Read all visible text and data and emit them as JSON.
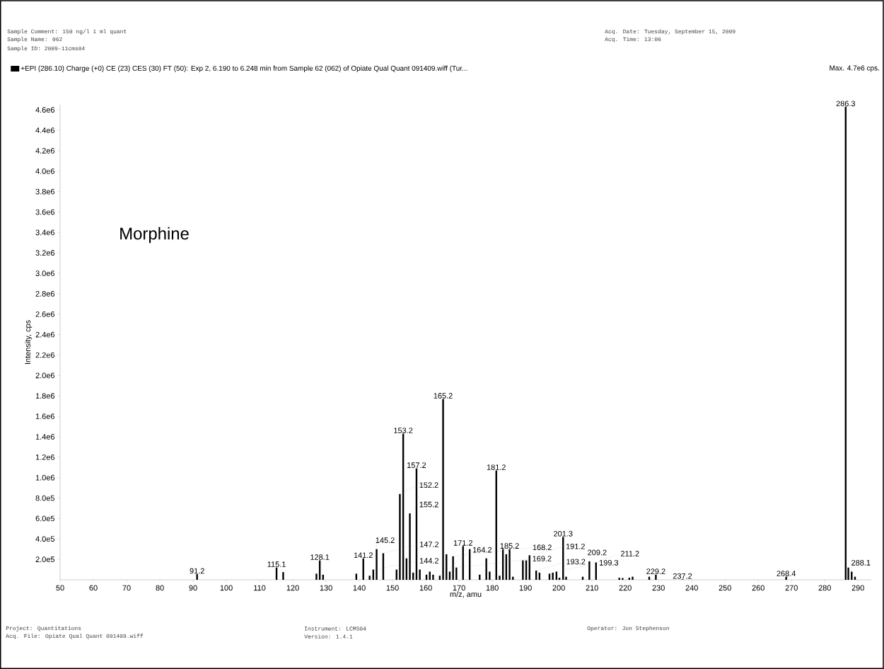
{
  "chart_data": {
    "type": "bar",
    "xlabel": "m/z, amu",
    "ylabel": "Intensity, cps",
    "x": [
      91.2,
      115.1,
      117.1,
      127.1,
      128.1,
      129.1,
      139.1,
      141.2,
      143.1,
      144.2,
      145.2,
      147.2,
      151.2,
      152.2,
      153.2,
      154.2,
      155.2,
      156.2,
      157.2,
      158.2,
      160.2,
      161.2,
      162.2,
      164.2,
      165.2,
      166.2,
      167.2,
      168.2,
      169.2,
      171.2,
      173.2,
      176.2,
      178.2,
      179.2,
      181.2,
      182.2,
      183.2,
      184.2,
      185.2,
      186.2,
      189.2,
      190.2,
      191.2,
      193.2,
      194.2,
      197.2,
      198.2,
      199.3,
      200.2,
      201.3,
      202.2,
      207.2,
      209.2,
      211.2,
      218.2,
      219.2,
      221.2,
      222.2,
      227.2,
      229.2,
      237.2,
      268.4,
      286.3,
      287.1,
      288.1,
      289.1
    ],
    "series": [
      {
        "name": "+EPI (286.10) Charge (+0) CE (23) CES (30) FT (50): Exp 2, 6.190 to 6.248 min from Sample 62 (062) of Opiate Qual Quant 091409.wiff (Tur...",
        "color": "#000000",
        "values": [
          55000,
          120000,
          75000,
          60000,
          190000,
          50000,
          60000,
          210000,
          40000,
          100000,
          300000,
          260000,
          100000,
          840000,
          1430000,
          210000,
          650000,
          70000,
          1090000,
          100000,
          50000,
          80000,
          50000,
          40000,
          1770000,
          250000,
          80000,
          230000,
          120000,
          330000,
          300000,
          50000,
          210000,
          80000,
          1070000,
          40000,
          300000,
          250000,
          300000,
          30000,
          190000,
          190000,
          240000,
          90000,
          70000,
          60000,
          70000,
          80000,
          20000,
          420000,
          30000,
          30000,
          180000,
          170000,
          20000,
          17000,
          20000,
          30000,
          30000,
          50000,
          5000,
          30000,
          4630000,
          120000,
          80000,
          30000
        ]
      }
    ],
    "xlim": [
      50,
      294
    ],
    "xticks": [
      50,
      60,
      70,
      80,
      90,
      100,
      110,
      120,
      130,
      140,
      150,
      160,
      170,
      180,
      190,
      200,
      210,
      220,
      230,
      240,
      250,
      260,
      270,
      280,
      290
    ],
    "ylim": [
      0,
      4650000
    ],
    "yticks": [
      {
        "value": 200000,
        "label": "2.0e5"
      },
      {
        "value": 400000,
        "label": "4.0e5"
      },
      {
        "value": 600000,
        "label": "6.0e5"
      },
      {
        "value": 800000,
        "label": "8.0e5"
      },
      {
        "value": 1000000,
        "label": "1.0e6"
      },
      {
        "value": 1200000,
        "label": "1.2e6"
      },
      {
        "value": 1400000,
        "label": "1.4e6"
      },
      {
        "value": 1600000,
        "label": "1.6e6"
      },
      {
        "value": 1800000,
        "label": "1.8e6"
      },
      {
        "value": 2000000,
        "label": "2.0e6"
      },
      {
        "value": 2200000,
        "label": "2.2e6"
      },
      {
        "value": 2400000,
        "label": "2.4e6"
      },
      {
        "value": 2600000,
        "label": "2.6e6"
      },
      {
        "value": 2800000,
        "label": "2.8e6"
      },
      {
        "value": 3000000,
        "label": "3.0e6"
      },
      {
        "value": 3200000,
        "label": "3.2e6"
      },
      {
        "value": 3400000,
        "label": "3.4e6"
      },
      {
        "value": 3600000,
        "label": "3.6e6"
      },
      {
        "value": 3800000,
        "label": "3.8e6"
      },
      {
        "value": 4000000,
        "label": "4.0e6"
      },
      {
        "value": 4200000,
        "label": "4.2e6"
      },
      {
        "value": 4400000,
        "label": "4.4e6"
      },
      {
        "value": 4600000,
        "label": "4.6e6"
      }
    ],
    "grid": false,
    "legend": "top left",
    "annotations": [
      "Sample Comment: 150 ng/l 1 ml quant",
      "Sample Name: 062",
      "Sample ID: 2009-11cms04",
      "Acq. Date: Tuesday, September 15, 2009",
      "Acq. Time: 13:06",
      "Max. 4.7e6 cps.",
      "Morphine",
      "Project: Quantitations",
      "Acq. File: Opiate Qual Quant 091409.wiff",
      "Instrument: LCMS04",
      "Version: 1.4.1",
      "Operator: Jon Stephenson",
      {
        "text": "91.2",
        "x": 91.2,
        "y": 55000
      },
      {
        "text": "115.1",
        "x": 115.1,
        "y": 120000
      },
      {
        "text": "128.1",
        "x": 128.1,
        "y": 190000
      },
      {
        "text": "141.2",
        "x": 141.2,
        "y": 210000
      },
      {
        "text": "144.2",
        "x": 144.2,
        "y": 100000
      },
      {
        "text": "145.2",
        "x": 145.2,
        "y": 300000
      },
      {
        "text": "147.2",
        "x": 147.2,
        "y": 260000
      },
      {
        "text": "152.2",
        "x": 152.2,
        "y": 840000
      },
      {
        "text": "153.2",
        "x": 153.2,
        "y": 1430000
      },
      {
        "text": "155.2",
        "x": 155.2,
        "y": 650000
      },
      {
        "text": "157.2",
        "x": 157.2,
        "y": 1090000
      },
      {
        "text": "164.2",
        "x": 164.2,
        "y": 40000
      },
      {
        "text": "165.2",
        "x": 165.2,
        "y": 1770000
      },
      {
        "text": "168.2",
        "x": 168.2,
        "y": 230000
      },
      {
        "text": "169.2",
        "x": 169.2,
        "y": 120000
      },
      {
        "text": "171.2",
        "x": 171.2,
        "y": 330000
      },
      {
        "text": "181.2",
        "x": 181.2,
        "y": 1070000
      },
      {
        "text": "185.2",
        "x": 185.2,
        "y": 300000
      },
      {
        "text": "191.2",
        "x": 191.2,
        "y": 240000
      },
      {
        "text": "193.2",
        "x": 193.2,
        "y": 90000
      },
      {
        "text": "199.3",
        "x": 199.3,
        "y": 80000
      },
      {
        "text": "201.3",
        "x": 201.3,
        "y": 420000
      },
      {
        "text": "209.2",
        "x": 209.2,
        "y": 180000
      },
      {
        "text": "211.2",
        "x": 211.2,
        "y": 170000
      },
      {
        "text": "229.2",
        "x": 229.2,
        "y": 50000
      },
      {
        "text": "237.2",
        "x": 237.2,
        "y": 5000
      },
      {
        "text": "268.4",
        "x": 268.4,
        "y": 30000
      },
      {
        "text": "286.3",
        "x": 286.3,
        "y": 4630000
      },
      {
        "text": "288.1",
        "x": 288.1,
        "y": 80000
      }
    ]
  }
}
